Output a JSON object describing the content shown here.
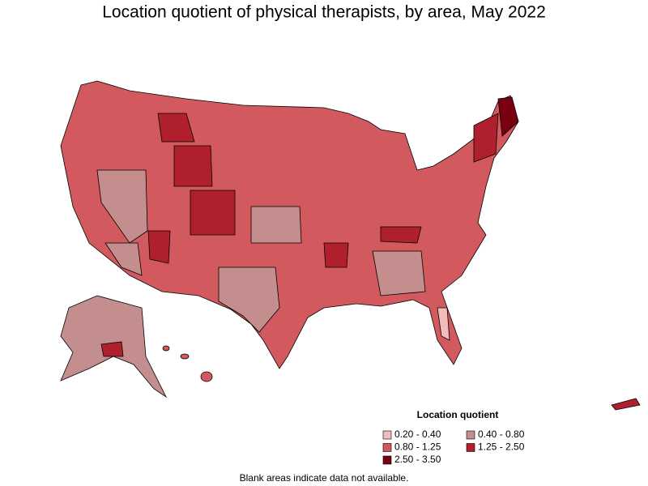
{
  "title": "Location quotient of physical therapists, by area, May 2022",
  "legend": {
    "title": "Location quotient",
    "items": [
      {
        "label": "0.20 - 0.40",
        "color": "#f2bcbc"
      },
      {
        "label": "0.40 - 0.80",
        "color": "#c48e8e"
      },
      {
        "label": "0.80 - 1.25",
        "color": "#d25a5e"
      },
      {
        "label": "1.25 - 2.50",
        "color": "#b0202c"
      },
      {
        "label": "2.50 - 3.50",
        "color": "#780010"
      }
    ]
  },
  "note": "Blank areas indicate data not available."
}
